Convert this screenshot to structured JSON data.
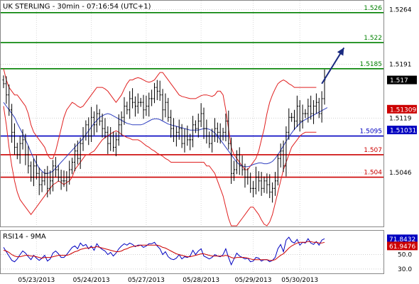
{
  "chart_data": [
    {
      "type": "candlestick",
      "title": "UK STERLING - 30min - 07:16:54 (UTC+1)",
      "ylim": [
        1.4975,
        1.5275
      ],
      "y_ticks": [
        "1.5264",
        "1.5191",
        "1.5119",
        "1.5046"
      ],
      "x_ticks": [
        "05/23/2013",
        "05/24/2013",
        "05/27/2013",
        "05/28/2013",
        "05/29/2013",
        "05/30/2013"
      ],
      "levels": [
        {
          "label": "1.526",
          "value": 1.526,
          "color": "#008000"
        },
        {
          "label": "1.522",
          "value": 1.522,
          "color": "#008000"
        },
        {
          "label": "1.5185",
          "value": 1.5185,
          "color": "#008000"
        },
        {
          "label": "1.5095",
          "value": 1.5095,
          "color": "#0000c0"
        },
        {
          "label": "1.507",
          "value": 1.507,
          "color": "#cc0000"
        },
        {
          "label": "1.504",
          "value": 1.504,
          "color": "#cc0000"
        }
      ],
      "price_tags": [
        {
          "label": "1.517",
          "value": 1.517,
          "color": "#000000"
        },
        {
          "label": "1.51309",
          "value": 1.51309,
          "color": "#cc0000"
        },
        {
          "label": "1.51031",
          "value": 1.51031,
          "color": "#0000c0"
        }
      ],
      "close": [
        1.5165,
        1.515,
        1.513,
        1.51,
        1.508,
        1.507,
        1.5085,
        1.509,
        1.507,
        1.5055,
        1.504,
        1.5055,
        1.5045,
        1.503,
        1.5035,
        1.5045,
        1.5025,
        1.5035,
        1.5055,
        1.505,
        1.504,
        1.5035,
        1.5035,
        1.504,
        1.505,
        1.506,
        1.5075,
        1.5065,
        1.5085,
        1.5095,
        1.511,
        1.5095,
        1.512,
        1.511,
        1.5125,
        1.5115,
        1.5105,
        1.51,
        1.5085,
        1.5095,
        1.508,
        1.509,
        1.511,
        1.512,
        1.5135,
        1.513,
        1.5145,
        1.514,
        1.5135,
        1.514,
        1.514,
        1.513,
        1.5135,
        1.5145,
        1.5145,
        1.516,
        1.5155,
        1.515,
        1.513,
        1.514,
        1.512,
        1.5105,
        1.5095,
        1.51,
        1.5105,
        1.5085,
        1.5095,
        1.509,
        1.509,
        1.511,
        1.5105,
        1.5115,
        1.5125,
        1.5105,
        1.5095,
        1.5085,
        1.5095,
        1.5105,
        1.51,
        1.5095,
        1.51,
        1.5115,
        1.5085,
        1.5045,
        1.505,
        1.507,
        1.5055,
        1.505,
        1.504,
        1.504,
        1.5025,
        1.5025,
        1.504,
        1.5035,
        1.5025,
        1.5035,
        1.503,
        1.502,
        1.5025,
        1.5035,
        1.5065,
        1.5075,
        1.5055,
        1.51,
        1.512,
        1.512,
        1.5115,
        1.5135,
        1.5115,
        1.5125,
        1.5125,
        1.5135,
        1.5125,
        1.5135,
        1.514,
        1.5125,
        1.5145,
        1.517
      ],
      "ma_blue": [
        1.514,
        1.5135,
        1.513,
        1.5125,
        1.512,
        1.5112,
        1.5105,
        1.5098,
        1.509,
        1.5082,
        1.5073,
        1.5065,
        1.5058,
        1.5052,
        1.5048,
        1.5045,
        1.5045,
        1.5046,
        1.5048,
        1.5052,
        1.5056,
        1.506,
        1.5064,
        1.5068,
        1.5072,
        1.5076,
        1.508,
        1.5084,
        1.5088,
        1.5092,
        1.5097,
        1.5102,
        1.5107,
        1.5112,
        1.5116,
        1.512,
        1.5122,
        1.5124,
        1.5125,
        1.5124,
        1.5122,
        1.512,
        1.5118,
        1.5116,
        1.5114,
        1.5112,
        1.5111,
        1.511,
        1.511,
        1.511,
        1.511,
        1.5111,
        1.5113,
        1.5115,
        1.5117,
        1.5118,
        1.5118,
        1.5117,
        1.5115,
        1.5113,
        1.5111,
        1.511,
        1.5109,
        1.5108,
        1.5107,
        1.5106,
        1.5105,
        1.5104,
        1.5103,
        1.5103,
        1.5103,
        1.5103,
        1.5104,
        1.5105,
        1.5105,
        1.5104,
        1.5102,
        1.5099,
        1.5095,
        1.509,
        1.5085,
        1.508,
        1.5075,
        1.507,
        1.5065,
        1.506,
        1.5057,
        1.5055,
        1.5054,
        1.5054,
        1.5055,
        1.5057,
        1.5058,
        1.5059,
        1.5059,
        1.5058,
        1.5058,
        1.5059,
        1.5061,
        1.5065,
        1.507,
        1.5076,
        1.5082,
        1.5088,
        1.5094,
        1.5099,
        1.5104,
        1.5108,
        1.5112,
        1.5115,
        1.5117,
        1.5119,
        1.5121,
        1.5123,
        1.5125,
        1.5127,
        1.5129,
        1.5131,
        1.5133
      ],
      "band_upper": [
        1.5185,
        1.517,
        1.516,
        1.5155,
        1.515,
        1.515,
        1.5145,
        1.514,
        1.5135,
        1.5125,
        1.511,
        1.51,
        1.5095,
        1.509,
        1.5085,
        1.508,
        1.507,
        1.5065,
        1.5065,
        1.5075,
        1.509,
        1.5105,
        1.512,
        1.513,
        1.5135,
        1.514,
        1.5138,
        1.5135,
        1.5133,
        1.5135,
        1.514,
        1.5145,
        1.515,
        1.5155,
        1.516,
        1.516,
        1.516,
        1.5158,
        1.5155,
        1.515,
        1.5145,
        1.514,
        1.5145,
        1.515,
        1.5158,
        1.5165,
        1.517,
        1.517,
        1.5172,
        1.5173,
        1.5172,
        1.517,
        1.5168,
        1.5167,
        1.5168,
        1.517,
        1.5175,
        1.518,
        1.518,
        1.5175,
        1.517,
        1.5165,
        1.516,
        1.5155,
        1.515,
        1.5148,
        1.5147,
        1.5146,
        1.5145,
        1.5145,
        1.5145,
        1.5147,
        1.5149,
        1.515,
        1.515,
        1.5149,
        1.5148,
        1.515,
        1.5155,
        1.5155,
        1.515,
        1.513,
        1.5105,
        1.508,
        1.507,
        1.5065,
        1.506,
        1.5055,
        1.505,
        1.505,
        1.5055,
        1.506,
        1.5065,
        1.5075,
        1.509,
        1.5105,
        1.5125,
        1.514,
        1.515,
        1.5158,
        1.5165,
        1.5168,
        1.517,
        1.5168,
        1.5165,
        1.5163,
        1.516,
        1.516,
        1.516,
        1.516,
        1.516,
        1.516,
        1.516,
        1.516,
        1.516
      ],
      "band_lower": [
        1.5135,
        1.511,
        1.508,
        1.5055,
        1.5035,
        1.502,
        1.501,
        1.5005,
        1.5,
        1.4995,
        1.499,
        1.4995,
        1.5,
        1.5005,
        1.501,
        1.5015,
        1.502,
        1.5025,
        1.503,
        1.5032,
        1.5035,
        1.5033,
        1.503,
        1.5033,
        1.5035,
        1.504,
        1.505,
        1.5055,
        1.506,
        1.5065,
        1.507,
        1.507,
        1.5073,
        1.5075,
        1.508,
        1.5085,
        1.509,
        1.5093,
        1.5095,
        1.5098,
        1.51,
        1.5102,
        1.51,
        1.5097,
        1.5095,
        1.5093,
        1.5092,
        1.509,
        1.509,
        1.509,
        1.5088,
        1.5085,
        1.5082,
        1.508,
        1.5077,
        1.5075,
        1.5072,
        1.507,
        1.5068,
        1.5065,
        1.5063,
        1.506,
        1.506,
        1.506,
        1.506,
        1.506,
        1.506,
        1.506,
        1.506,
        1.506,
        1.506,
        1.506,
        1.506,
        1.506,
        1.5055,
        1.5055,
        1.505,
        1.5045,
        1.5035,
        1.5025,
        1.5015,
        1.5,
        1.4985,
        1.4975,
        1.4975,
        1.4975,
        1.498,
        1.4985,
        1.499,
        1.4995,
        1.5,
        1.5,
        1.4995,
        1.499,
        1.4983,
        1.4977,
        1.4975,
        1.498,
        1.499,
        1.5005,
        1.502,
        1.5035,
        1.505,
        1.506,
        1.507,
        1.508,
        1.5085,
        1.509,
        1.5095,
        1.5098,
        1.51,
        1.51,
        1.51,
        1.51,
        1.51
      ],
      "arrow": {
        "from": [
          116,
          1.5165
        ],
        "to": [
          122,
          1.5213
        ]
      }
    },
    {
      "type": "line",
      "title": "RSI14 - 9MA",
      "ylim": [
        25,
        82
      ],
      "y_ticks": [
        "50.0",
        "30.0"
      ],
      "price_tags": [
        {
          "label": "71.8432",
          "value": 71.8432,
          "color": "#0000c0"
        },
        {
          "label": "61.9476",
          "value": 61.9476,
          "color": "#cc0000"
        }
      ],
      "series": [
        {
          "color": "#0000c0",
          "values": [
            60,
            54,
            48,
            42,
            40,
            44,
            50,
            55,
            52,
            47,
            43,
            49,
            45,
            42,
            45,
            49,
            41,
            44,
            52,
            55,
            51,
            46,
            46,
            50,
            55,
            60,
            62,
            58,
            66,
            62,
            64,
            58,
            62,
            56,
            65,
            60,
            57,
            55,
            50,
            53,
            48,
            52,
            58,
            62,
            65,
            63,
            66,
            64,
            61,
            63,
            63,
            60,
            62,
            65,
            65,
            67,
            62,
            58,
            50,
            54,
            47,
            44,
            43,
            45,
            50,
            44,
            47,
            46,
            48,
            56,
            50,
            55,
            58,
            48,
            46,
            44,
            46,
            50,
            48,
            47,
            50,
            58,
            46,
            36,
            44,
            52,
            48,
            46,
            44,
            45,
            40,
            41,
            46,
            45,
            41,
            43,
            43,
            40,
            42,
            46,
            58,
            64,
            54,
            70,
            74,
            68,
            66,
            71,
            63,
            67,
            66,
            72,
            66,
            64,
            68,
            63,
            70,
            72
          ]
        },
        {
          "color": "#cc0000",
          "values": [
            56,
            55,
            53,
            50,
            48,
            47,
            47,
            48,
            49,
            49,
            48,
            48,
            47,
            46,
            45,
            46,
            46,
            46,
            47,
            48,
            49,
            49,
            49,
            49,
            50,
            52,
            54,
            55,
            57,
            58,
            59,
            59,
            60,
            60,
            61,
            60,
            59,
            58,
            57,
            56,
            55,
            54,
            54,
            55,
            57,
            58,
            60,
            61,
            62,
            62,
            63,
            63,
            63,
            63,
            63,
            63,
            63,
            62,
            60,
            59,
            57,
            55,
            53,
            51,
            50,
            49,
            48,
            47,
            47,
            48,
            49,
            50,
            51,
            51,
            50,
            49,
            48,
            48,
            48,
            48,
            48,
            49,
            48,
            46,
            45,
            46,
            46,
            46,
            46,
            45,
            44,
            43,
            43,
            43,
            43,
            43,
            43,
            42,
            42,
            43,
            46,
            49,
            51,
            55,
            59,
            62,
            64,
            66,
            67,
            67,
            67,
            68,
            68,
            67,
            67,
            66,
            66,
            67
          ]
        }
      ]
    }
  ]
}
